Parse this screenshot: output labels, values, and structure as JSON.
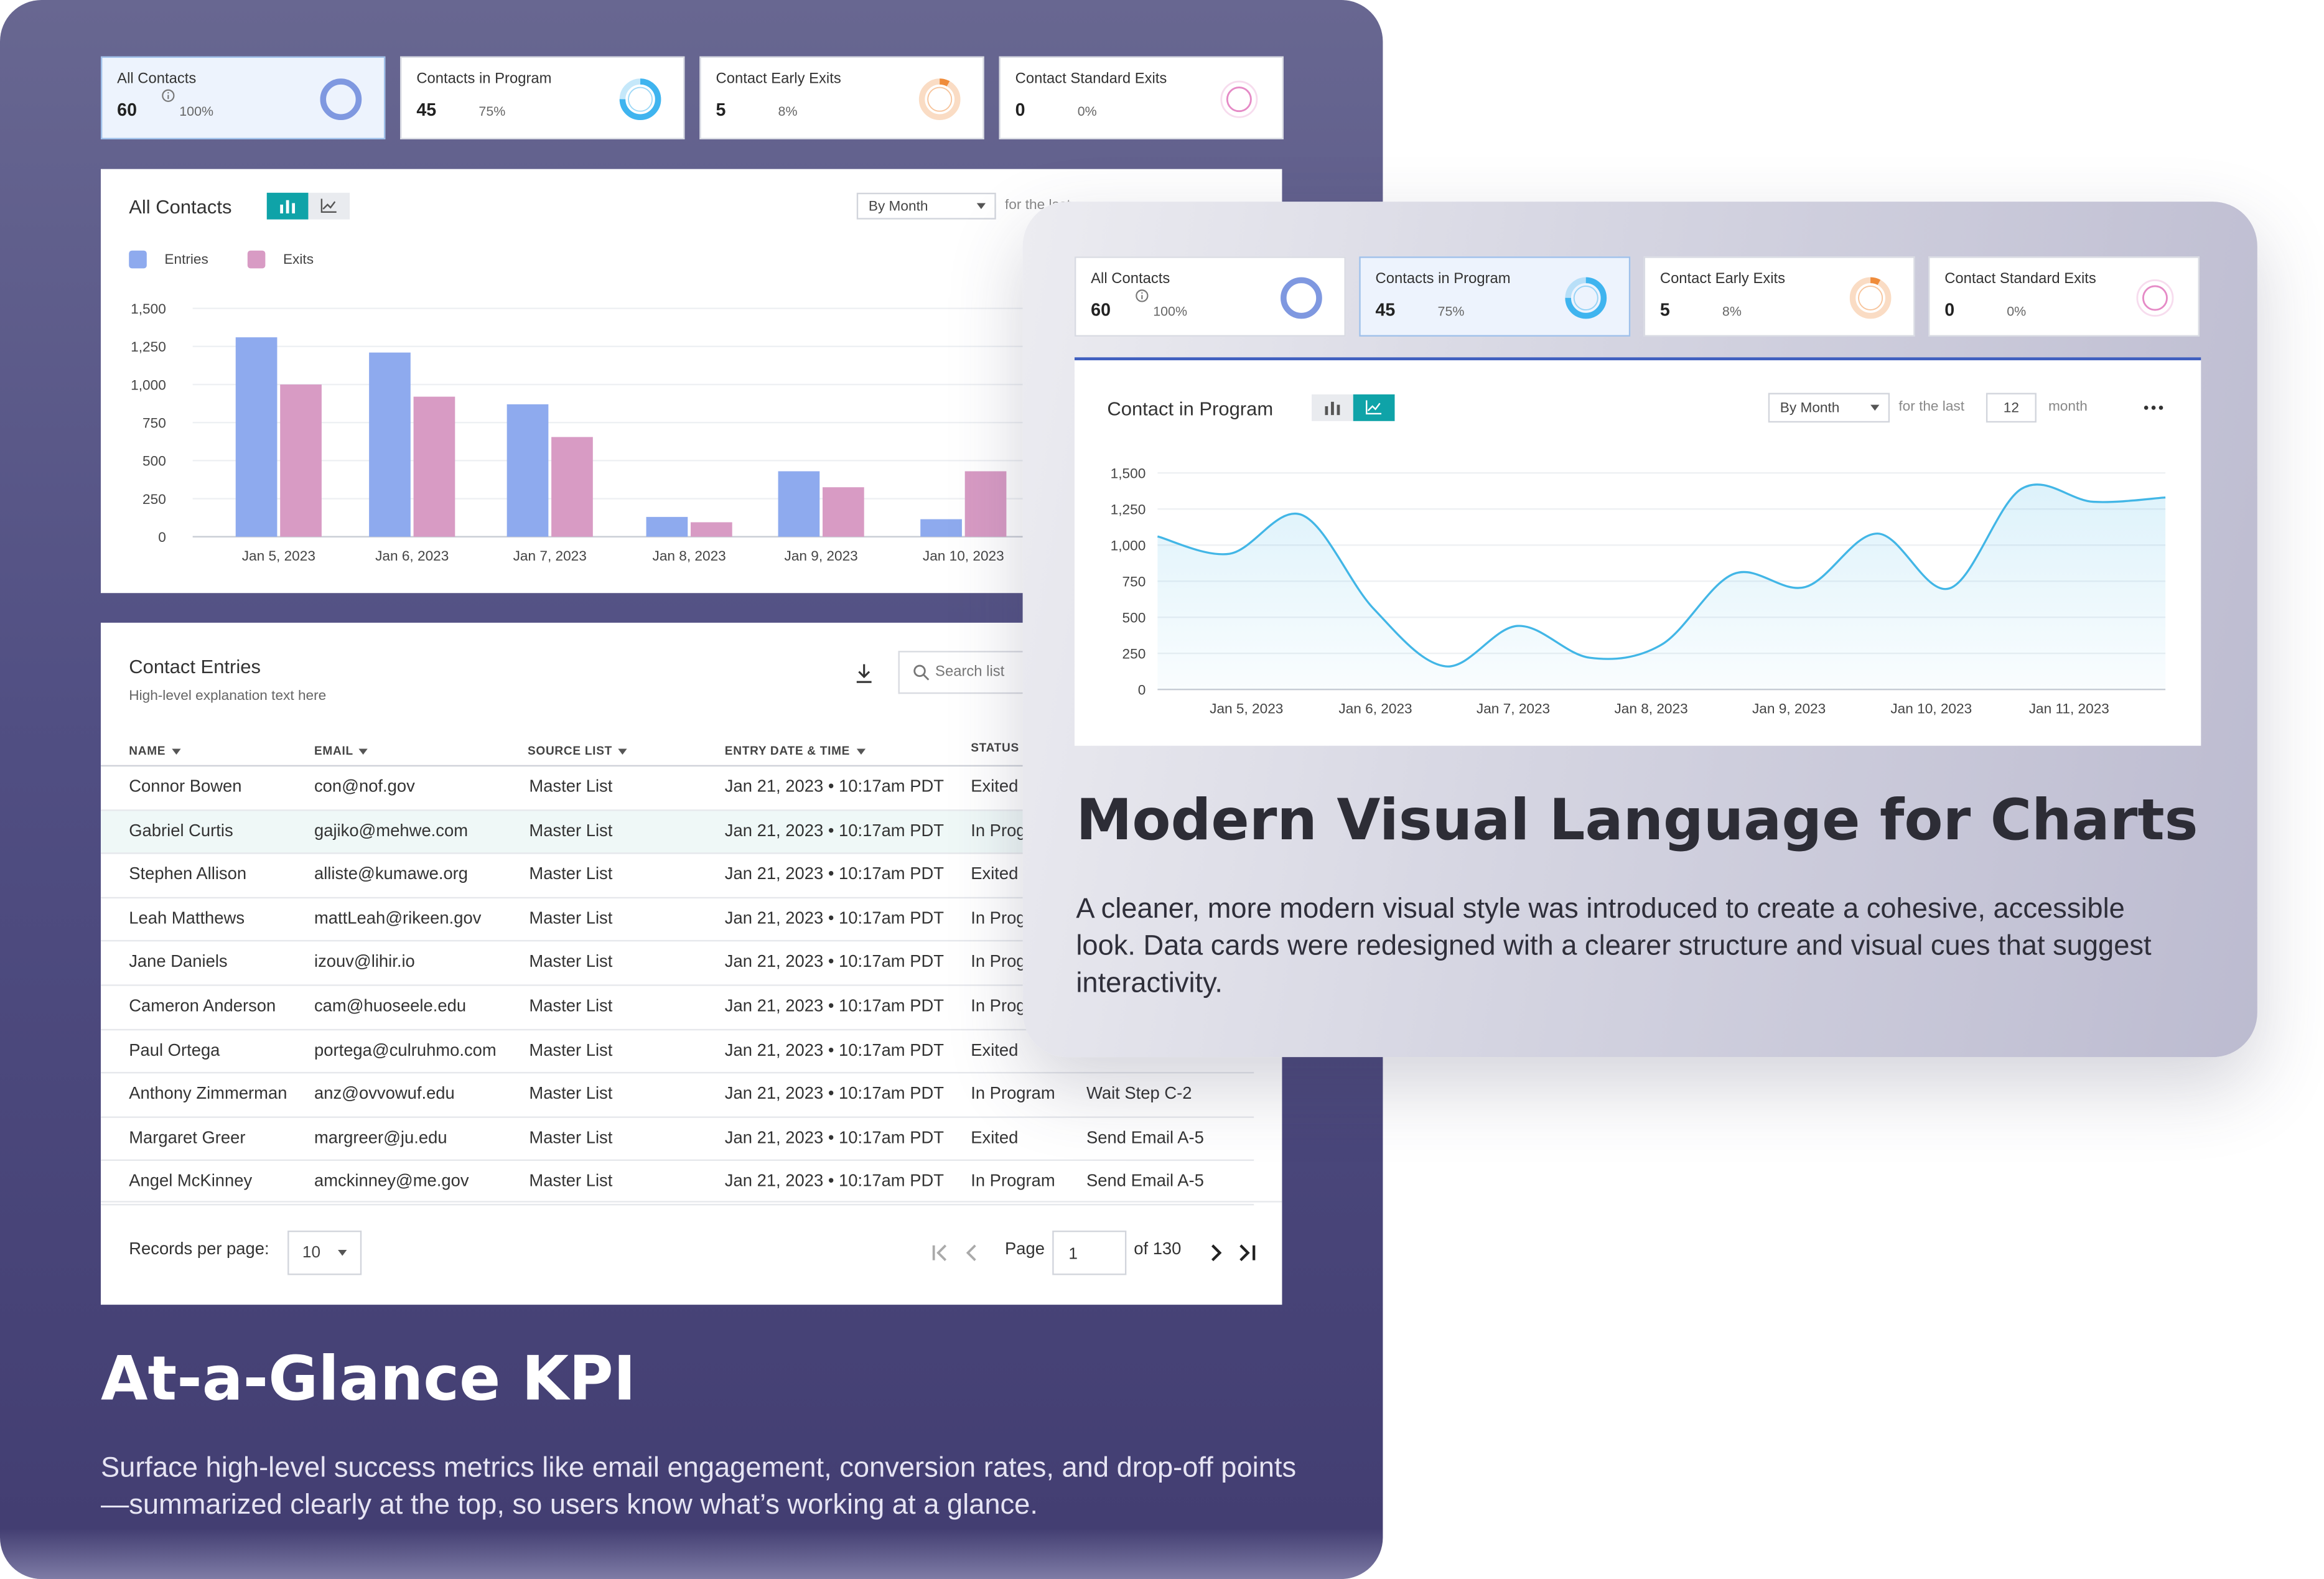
{
  "left": {
    "kpis": [
      {
        "title": "All Contacts",
        "value": "60",
        "pct": "100%",
        "info": true,
        "selected": true,
        "color": "#7f98e0",
        "fraction": 1.0
      },
      {
        "title": "Contacts in Program",
        "value": "45",
        "pct": "75%",
        "selected": false,
        "color": "#3fb4ef",
        "fraction": 0.75
      },
      {
        "title": "Contact Early Exits",
        "value": "5",
        "pct": "8%",
        "selected": false,
        "color": "#ef8c3b",
        "fraction": 0.08
      },
      {
        "title": "Contact Standard Exits",
        "value": "0",
        "pct": "0%",
        "selected": false,
        "color": "#e58ac6",
        "fraction": 0.0
      }
    ],
    "chart_card": {
      "title": "All Contacts",
      "period_select": "By Month",
      "for_the_last": "for the last"
    },
    "table": {
      "title": "Contact Entries",
      "subtitle": "High-level explanation text here",
      "search_placeholder": "Search list",
      "columns": [
        "NAME",
        "EMAIL",
        "SOURCE LIST",
        "ENTRY DATE & TIME",
        "STATUS"
      ],
      "rows": [
        {
          "name": "Connor Bowen",
          "email": "con@nof.gov",
          "source": "Master List",
          "date": "Jan 21, 2023 • 10:17am PDT",
          "status": "Exited",
          "step": ""
        },
        {
          "name": "Gabriel Curtis",
          "email": "gajiko@mehwe.com",
          "source": "Master List",
          "date": "Jan 21, 2023 • 10:17am PDT",
          "status": "In Prog",
          "step": ""
        },
        {
          "name": "Stephen Allison",
          "email": "alliste@kumawe.org",
          "source": "Master List",
          "date": "Jan 21, 2023 • 10:17am PDT",
          "status": "Exited",
          "step": ""
        },
        {
          "name": "Leah Matthews",
          "email": "mattLeah@rikeen.gov",
          "source": "Master List",
          "date": "Jan 21, 2023 • 10:17am PDT",
          "status": "In Prog",
          "step": ""
        },
        {
          "name": "Jane Daniels",
          "email": "izouv@lihir.io",
          "source": "Master List",
          "date": "Jan 21, 2023 • 10:17am PDT",
          "status": "In Prog",
          "step": ""
        },
        {
          "name": "Cameron Anderson",
          "email": "cam@huoseele.edu",
          "source": "Master List",
          "date": "Jan 21, 2023 • 10:17am PDT",
          "status": "In Prog",
          "step": ""
        },
        {
          "name": "Paul Ortega",
          "email": "portega@culruhmo.com",
          "source": "Master List",
          "date": "Jan 21, 2023 • 10:17am PDT",
          "status": "Exited",
          "step": ""
        },
        {
          "name": "Anthony Zimmerman",
          "email": "anz@ovvowuf.edu",
          "source": "Master List",
          "date": "Jan 21, 2023 • 10:17am PDT",
          "status": "In Program",
          "step": "Wait Step C-2"
        },
        {
          "name": "Margaret Greer",
          "email": "margreer@ju.edu",
          "source": "Master List",
          "date": "Jan 21, 2023 • 10:17am PDT",
          "status": "Exited",
          "step": "Send Email A-5"
        },
        {
          "name": "Angel McKinney",
          "email": "amckinney@me.gov",
          "source": "Master List",
          "date": "Jan 21, 2023 • 10:17am PDT",
          "status": "In Program",
          "step": "Send Email A-5"
        }
      ],
      "records_label": "Records per page:",
      "records_value": "10",
      "page_label": "Page",
      "page_value": "1",
      "of_label": "of 130"
    },
    "heading": "At-a-Glance KPI",
    "description": "Surface high-level success metrics like email engagement, conversion rates, and drop-off points—summarized clearly at the top, so users know what’s working at a glance."
  },
  "right": {
    "kpis": [
      {
        "title": "All Contacts",
        "value": "60",
        "pct": "100%",
        "info": true,
        "selected": false,
        "color": "#7f98e0",
        "fraction": 1.0
      },
      {
        "title": "Contacts in Program",
        "value": "45",
        "pct": "75%",
        "selected": true,
        "color": "#3fb4ef",
        "fraction": 0.75
      },
      {
        "title": "Contact Early Exits",
        "value": "5",
        "pct": "8%",
        "selected": false,
        "color": "#ef8c3b",
        "fraction": 0.08
      },
      {
        "title": "Contact Standard Exits",
        "value": "0",
        "pct": "0%",
        "selected": false,
        "color": "#e58ac6",
        "fraction": 0.0
      }
    ],
    "chart_card": {
      "title": "Contact in Program",
      "period_select": "By Month",
      "for_the_last": "for the last",
      "months_value": "12",
      "months_unit": "month"
    },
    "heading": "Modern Visual Language for Charts",
    "description": "A cleaner, more modern visual style was introduced to create a cohesive, accessible look. Data cards were redesigned with a clearer structure and visual cues that suggest interactivity."
  },
  "colors": {
    "entries": "#8eaaee",
    "exits": "#d89bc4",
    "accent": "#0fa3a8",
    "line": "#42b6e6"
  },
  "chart_data": [
    {
      "type": "bar",
      "title": "All Contacts",
      "categories": [
        "Jan 5, 2023",
        "Jan 6, 2023",
        "Jan 7, 2023",
        "Jan 8, 2023",
        "Jan 9, 2023",
        "Jan 10, 2023"
      ],
      "series": [
        {
          "name": "Entries",
          "values": [
            1310,
            1210,
            870,
            130,
            430,
            115
          ]
        },
        {
          "name": "Exits",
          "values": [
            1000,
            920,
            655,
            95,
            325,
            430
          ]
        }
      ],
      "yticks": [
        "0",
        "250",
        "500",
        "750",
        "1,000",
        "1,250",
        "1,500"
      ],
      "ylim": [
        0,
        1500
      ],
      "legend": "top-left",
      "grid": true
    },
    {
      "type": "area",
      "title": "Contact in Program",
      "categories": [
        "Jan 5, 2023",
        "Jan 6, 2023",
        "Jan 7, 2023",
        "Jan 8, 2023",
        "Jan 9, 2023",
        "Jan 10, 2023",
        "Jan 11, 2023"
      ],
      "x": [
        0,
        0.5,
        1,
        1.5,
        2,
        2.5,
        3,
        3.5,
        4,
        4.5,
        5,
        5.5,
        6,
        6.5,
        7
      ],
      "values": [
        1060,
        940,
        1210,
        560,
        160,
        440,
        220,
        310,
        800,
        710,
        1080,
        700,
        1390,
        1300,
        1330
      ],
      "yticks": [
        "0",
        "250",
        "500",
        "750",
        "1,000",
        "1,250",
        "1,500"
      ],
      "ylim": [
        0,
        1500
      ],
      "grid": true
    }
  ]
}
